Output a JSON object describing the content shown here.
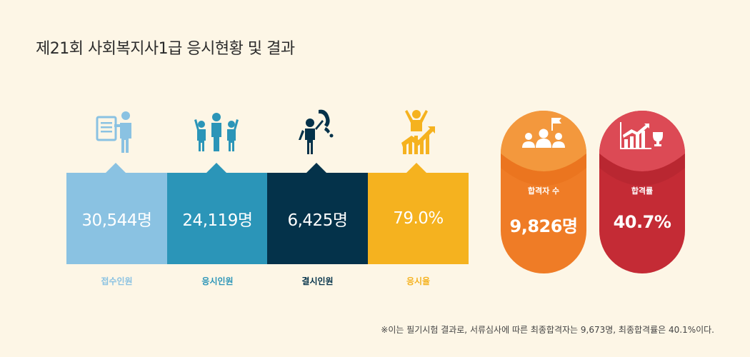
{
  "title": "제21회 사회복지사1급 응시현황 및 결과",
  "colors": {
    "applicants": "#8ac2e2",
    "examinees": "#2b95b8",
    "absentees": "#04324a",
    "rate": "#f5b21f",
    "passers": "#ef7c26",
    "passers_light": "#f3983d",
    "pass_rate": "#c42b35",
    "pass_rate_light": "#dc4a55"
  },
  "chart_data": {
    "type": "bar",
    "categories": [
      "접수인원",
      "응시인원",
      "결시인원",
      "응시율"
    ],
    "values": [
      "30,544명",
      "24,119명",
      "6,425명",
      "79.0%"
    ],
    "icons": [
      "person-with-document-icon",
      "group-cheering-icon",
      "person-phone-icon",
      "person-growth-chart-icon"
    ]
  },
  "results": [
    {
      "label": "합격자 수",
      "value": "9,826명",
      "icon": "people-flag-icon"
    },
    {
      "label": "합격률",
      "value": "40.7%",
      "icon": "chart-trophy-icon"
    }
  ],
  "footnote": "※이는 필기시험 결과로, 서류심사에 따른 최종합격자는 9,673명, 최종합격률은 40.1%이다."
}
